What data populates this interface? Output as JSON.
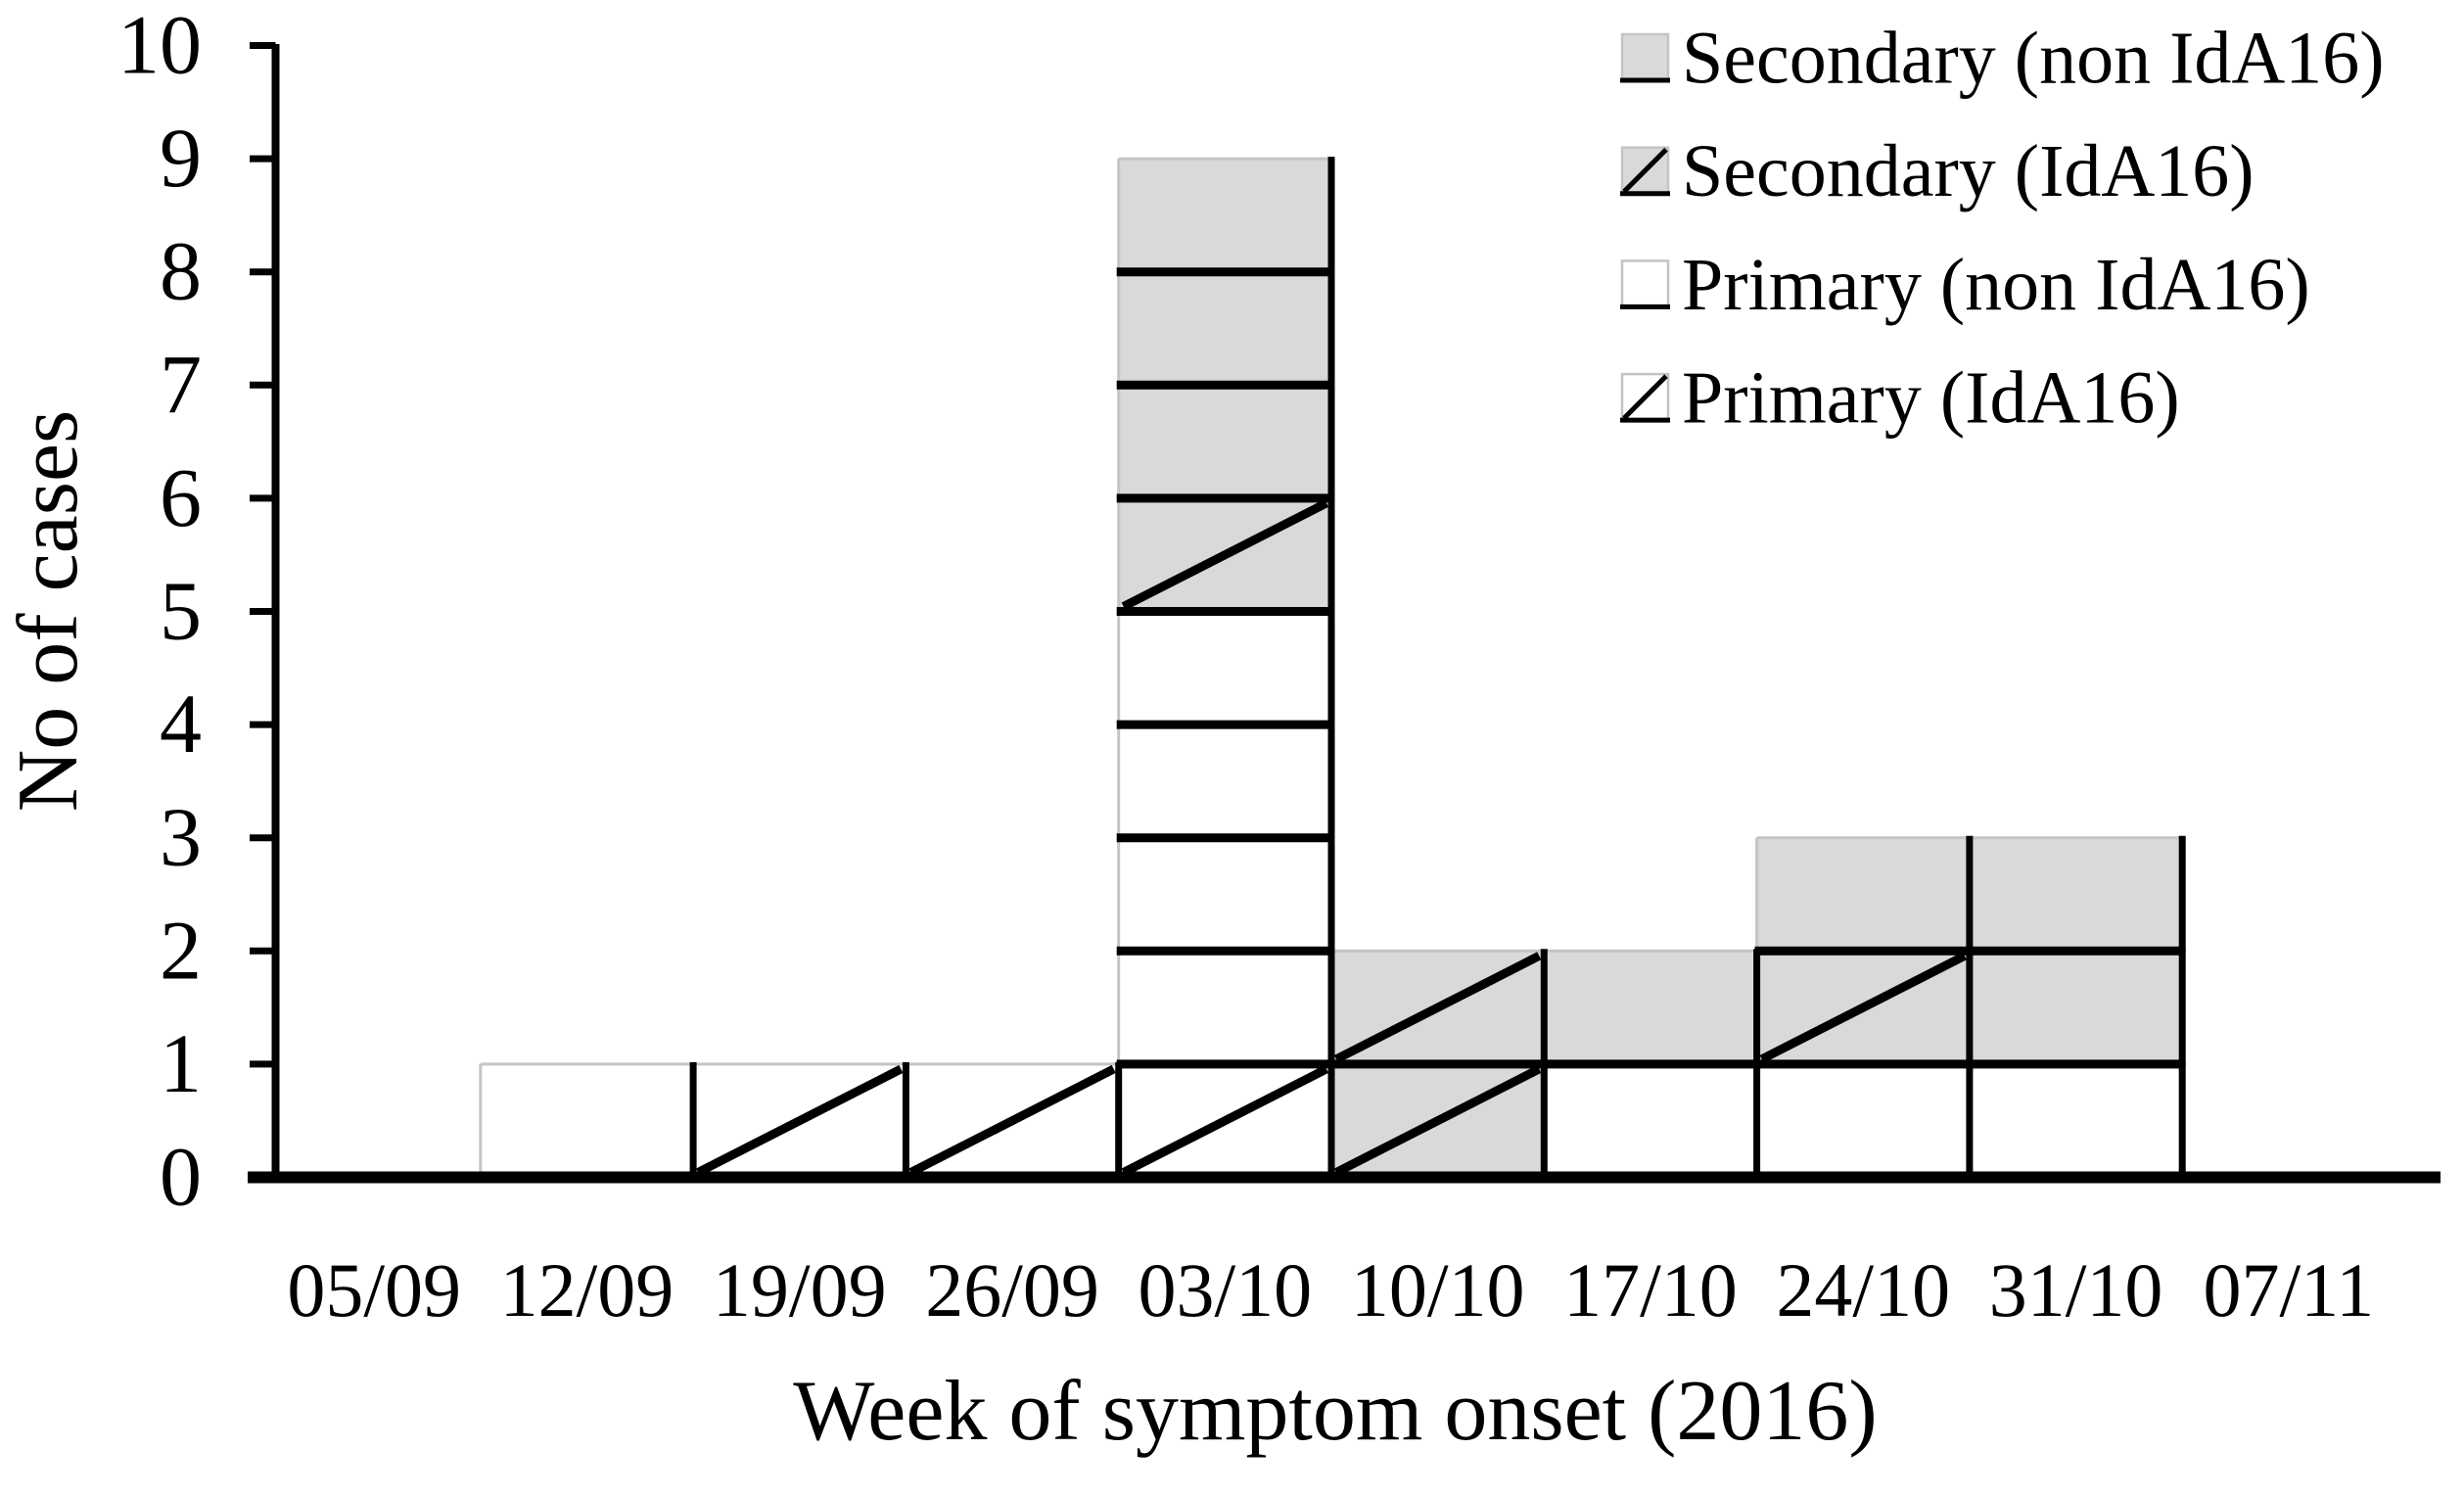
{
  "chart_data": {
    "type": "bar",
    "stacked": true,
    "unit_case_boxes": true,
    "xlabel": "Week of symptom onset (2016)",
    "ylabel": "No of cases",
    "ylim": [
      0,
      10
    ],
    "yticks": [
      0,
      1,
      2,
      3,
      4,
      5,
      6,
      7,
      8,
      9,
      10
    ],
    "grid": false,
    "categories": [
      "05/09",
      "12/09",
      "19/09",
      "26/09",
      "03/10",
      "10/10",
      "17/10",
      "24/10",
      "31/10",
      "07/11"
    ],
    "series": [
      {
        "name": "Primary (IdA16)",
        "fill": "#ffffff",
        "hatch": true,
        "values": [
          0,
          0,
          1,
          1,
          1,
          0,
          0,
          0,
          0,
          0
        ]
      },
      {
        "name": "Primary (non IdA16)",
        "fill": "#ffffff",
        "hatch": false,
        "values": [
          0,
          1,
          0,
          0,
          4,
          0,
          1,
          1,
          1,
          0
        ]
      },
      {
        "name": "Secondary (IdA16)",
        "fill": "#d9d9d9",
        "hatch": true,
        "values": [
          0,
          0,
          0,
          0,
          1,
          2,
          0,
          1,
          0,
          0
        ]
      },
      {
        "name": "Secondary (non IdA16)",
        "fill": "#d9d9d9",
        "hatch": false,
        "values": [
          0,
          0,
          0,
          0,
          3,
          0,
          1,
          1,
          2,
          0
        ]
      }
    ],
    "stack_order": "series listed bottom to top",
    "totals_per_week": [
      0,
      1,
      1,
      1,
      9,
      2,
      2,
      3,
      3,
      0
    ],
    "legend": {
      "position": "top-right",
      "items": [
        {
          "label": "Secondary (non IdA16)",
          "fill": "#d9d9d9",
          "hatch": false
        },
        {
          "label": "Secondary (IdA16)",
          "fill": "#d9d9d9",
          "hatch": true
        },
        {
          "label": "Primary (non IdA16)",
          "fill": "#ffffff",
          "hatch": false
        },
        {
          "label": "Primary (IdA16)",
          "fill": "#ffffff",
          "hatch": true
        }
      ]
    }
  },
  "colors": {
    "bar_gray": "#d9d9d9",
    "bar_white": "#ffffff",
    "line_black": "#000000",
    "light_edge": "#c4c4c4",
    "background": "#ffffff"
  }
}
